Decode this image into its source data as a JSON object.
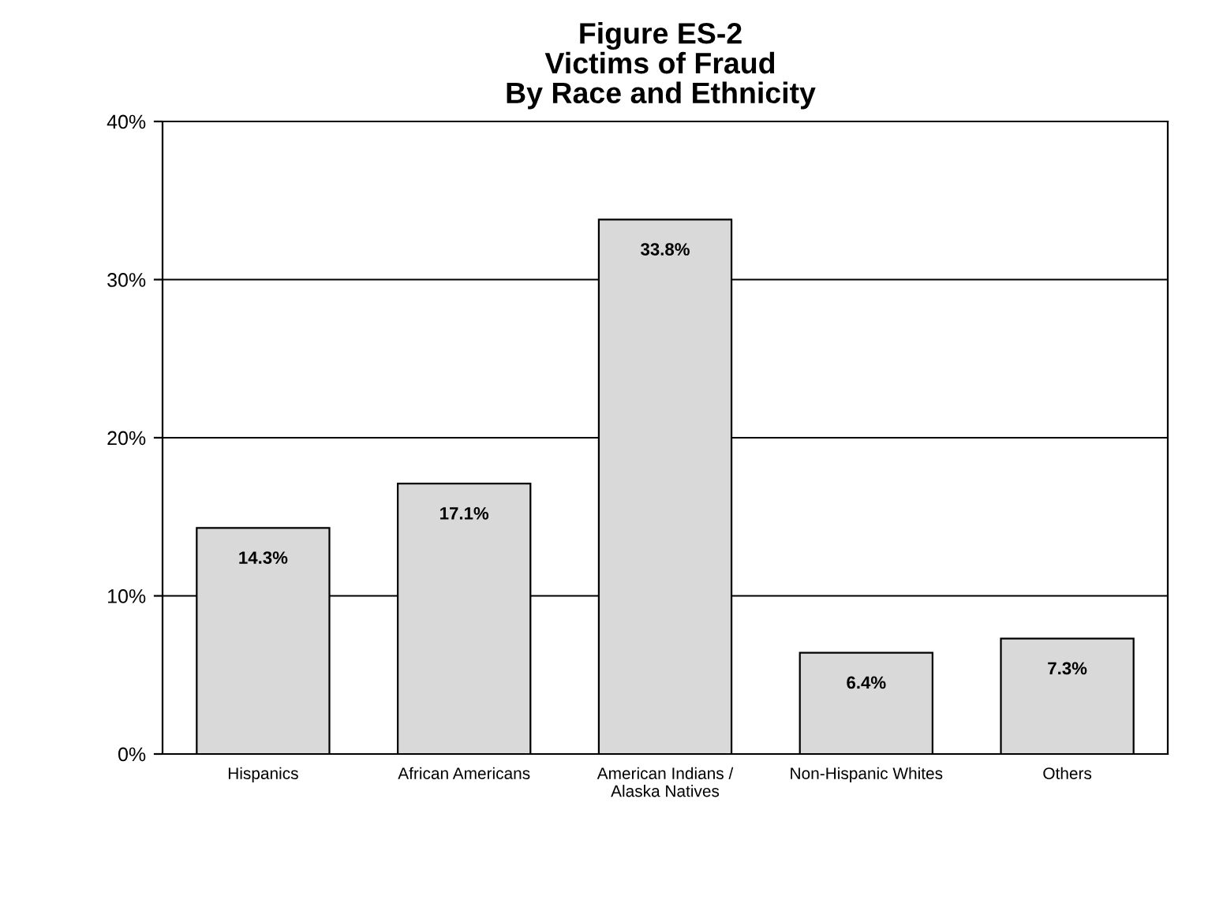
{
  "chart_data": {
    "type": "bar",
    "title": "Figure ES-2\nVictims of Fraud\nBy Race and Ethnicity",
    "categories": [
      "Hispanics",
      "African Americans",
      "American Indians /\nAlaska Natives",
      "Non-Hispanic Whites",
      "Others"
    ],
    "values": [
      14.3,
      17.1,
      33.8,
      6.4,
      7.3
    ],
    "value_labels": [
      "14.3%",
      "17.1%",
      "33.8%",
      "6.4%",
      "7.3%"
    ],
    "color": "#d9d9d9",
    "ylim": [
      0,
      40
    ],
    "yticks": [
      {
        "value": 0,
        "label": "0%"
      },
      {
        "value": 10,
        "label": "10%"
      },
      {
        "value": 20,
        "label": "20%"
      },
      {
        "value": 30,
        "label": "30%"
      },
      {
        "value": 40,
        "label": "40%"
      }
    ],
    "grid": "y",
    "legend": false
  }
}
